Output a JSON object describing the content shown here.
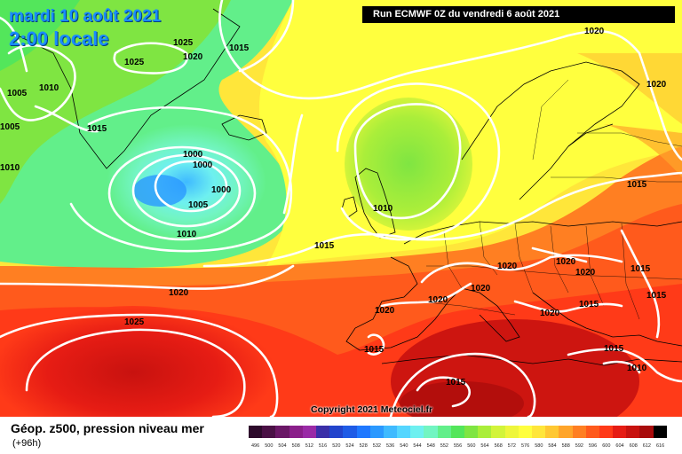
{
  "header": {
    "date": "mardi 10 août 2021",
    "local_time": "2:00 locale",
    "run_info": "Run ECMWF 0Z du vendredi 6 août 2021"
  },
  "footer": {
    "title": "Géop. z500, pression niveau mer",
    "lead_time": "(+96h)",
    "copyright": "Copyright 2021 Meteociel.fr"
  },
  "isobar_labels": [
    "1025",
    "1020",
    "1015",
    "1010",
    "1005",
    "1000",
    "1000",
    "1000",
    "1005",
    "1010",
    "1025",
    "1020",
    "1015",
    "1005",
    "1010",
    "1005",
    "1010",
    "1010",
    "1015",
    "1020",
    "1020",
    "1015",
    "1020",
    "1020",
    "1020",
    "1020",
    "1020",
    "1015",
    "1015",
    "1020",
    "1015",
    "1025",
    "1020",
    "1015",
    "1015",
    "1020",
    "1010",
    "1015"
  ],
  "legend": {
    "ticks": [
      "496",
      "500",
      "504",
      "508",
      "512",
      "516",
      "520",
      "524",
      "528",
      "532",
      "536",
      "540",
      "544",
      "548",
      "552",
      "556",
      "560",
      "564",
      "568",
      "572",
      "576",
      "580",
      "584",
      "588",
      "592",
      "596",
      "600",
      "604",
      "608",
      "612",
      "616"
    ],
    "colors": [
      "#2d0a2b",
      "#4a1045",
      "#6a1766",
      "#8a1f8a",
      "#9a2aa6",
      "#3b2fa8",
      "#2244cc",
      "#1e5be6",
      "#1f78ff",
      "#2b99ff",
      "#3fbaff",
      "#55d6ff",
      "#6ef0f0",
      "#72f5c2",
      "#62ef8a",
      "#53e65b",
      "#7fe542",
      "#aaee3a",
      "#d2f43a",
      "#eef63c",
      "#ffff3e",
      "#ffe63a",
      "#ffc832",
      "#ffa52a",
      "#ff7f22",
      "#ff5a1c",
      "#ff3a18",
      "#e61c14",
      "#c8120f",
      "#a80c0c",
      "#000000"
    ]
  }
}
